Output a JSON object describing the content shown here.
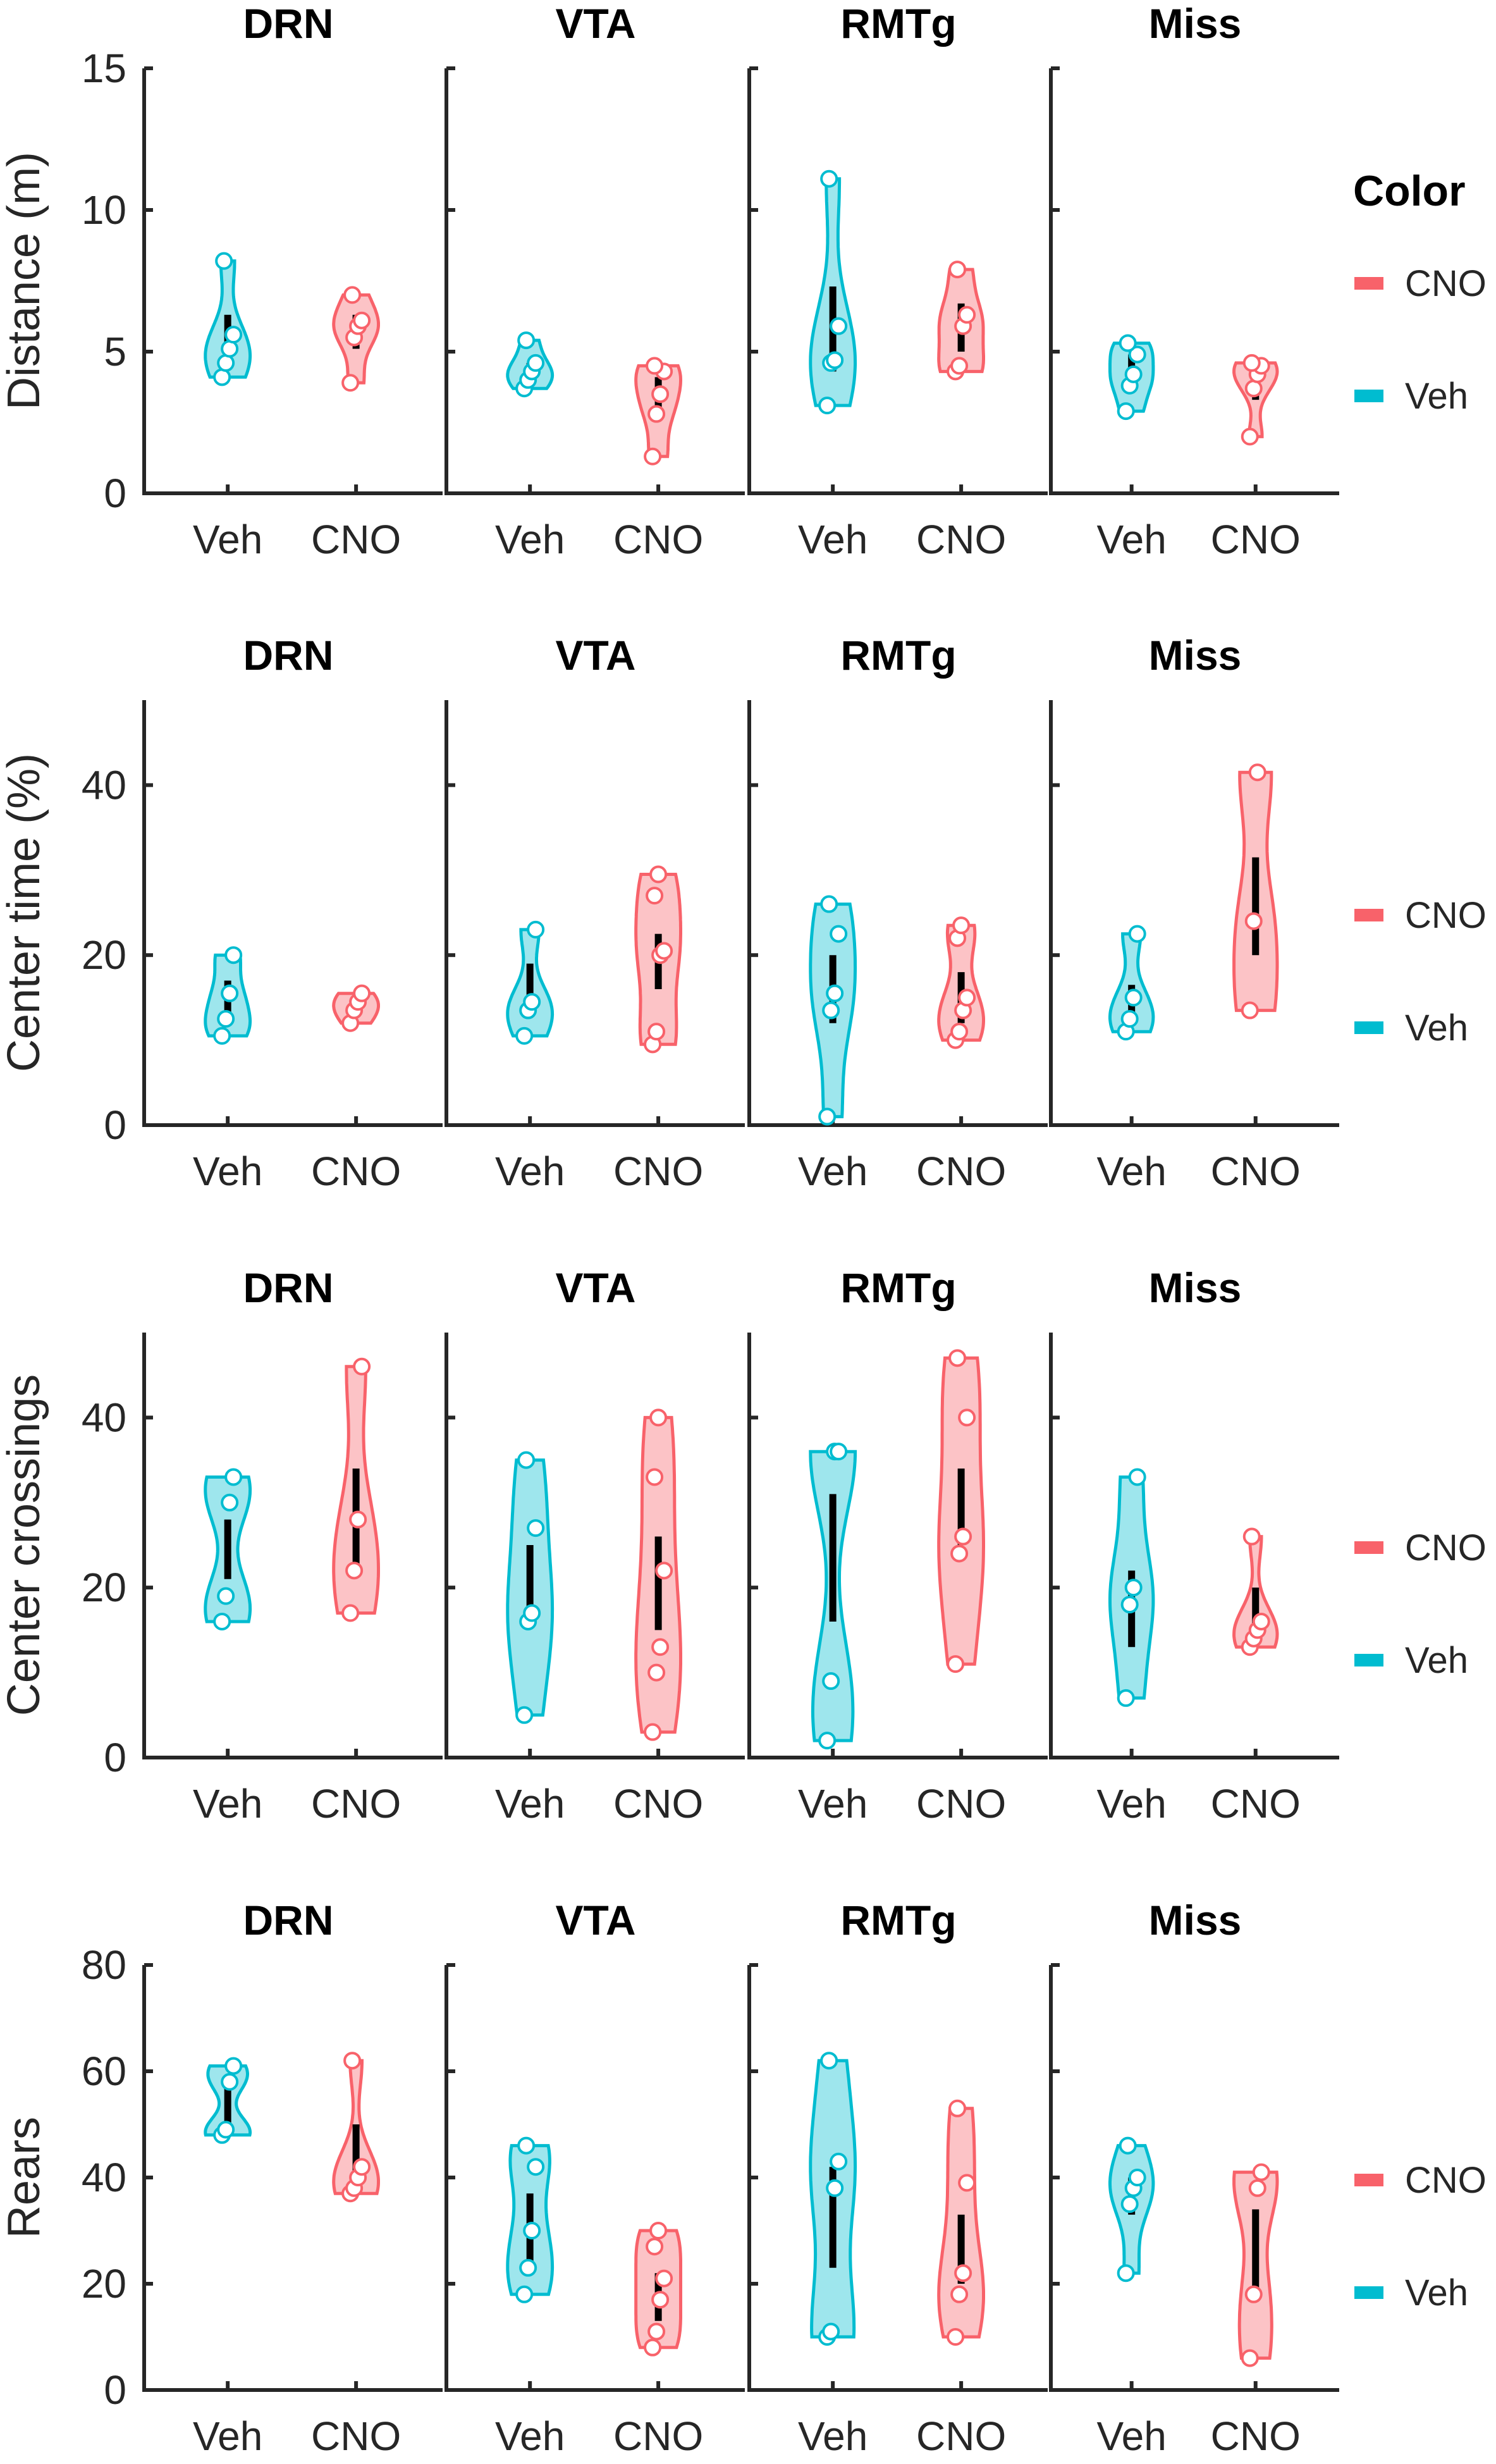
{
  "colors": {
    "Veh": "#00BCD0",
    "CNO": "#F8626A",
    "axis": "#262626"
  },
  "legend": {
    "title": "Color",
    "items": [
      "CNO",
      "Veh"
    ]
  },
  "chart_data": [
    {
      "type": "violin",
      "ylabel": "Distance (m)",
      "ylim": [
        0,
        15
      ],
      "yticks": [
        "0",
        "5",
        "10",
        "15"
      ],
      "categories": [
        "Veh",
        "CNO"
      ],
      "panels": [
        {
          "title": "DRN",
          "series": [
            {
              "name": "Veh",
              "points": [
                4.1,
                4.6,
                5.1,
                5.6,
                8.2
              ],
              "iqr": [
                4.5,
                6.3
              ]
            },
            {
              "name": "CNO",
              "points": [
                3.9,
                5.5,
                5.9,
                6.1,
                7.0
              ],
              "iqr": [
                5.1,
                6.3
              ]
            }
          ]
        },
        {
          "title": "VTA",
          "series": [
            {
              "name": "Veh",
              "points": [
                3.7,
                4.0,
                4.3,
                4.6,
                5.4
              ],
              "iqr": [
                4.0,
                4.6
              ]
            },
            {
              "name": "CNO",
              "points": [
                1.3,
                2.8,
                3.5,
                4.3,
                4.5
              ],
              "iqr": [
                3.0,
                4.1
              ]
            }
          ]
        },
        {
          "title": "RMTg",
          "series": [
            {
              "name": "Veh",
              "points": [
                3.1,
                4.6,
                4.7,
                5.9,
                11.1
              ],
              "iqr": [
                4.3,
                7.3
              ]
            },
            {
              "name": "CNO",
              "points": [
                4.3,
                4.5,
                5.9,
                6.3,
                7.9
              ],
              "iqr": [
                5.0,
                6.7
              ]
            }
          ]
        },
        {
          "title": "Miss",
          "series": [
            {
              "name": "Veh",
              "points": [
                2.9,
                3.8,
                4.2,
                4.9,
                5.3
              ],
              "iqr": [
                3.6,
                4.9
              ]
            },
            {
              "name": "CNO",
              "points": [
                2.0,
                3.7,
                4.2,
                4.5,
                4.6
              ],
              "iqr": [
                3.3,
                4.3
              ]
            }
          ]
        }
      ]
    },
    {
      "type": "violin",
      "ylabel": "Center time (%)",
      "ylim": [
        0,
        50
      ],
      "yticks": [
        "0",
        "20",
        "40"
      ],
      "categories": [
        "Veh",
        "CNO"
      ],
      "panels": [
        {
          "title": "DRN",
          "series": [
            {
              "name": "Veh",
              "points": [
                10.5,
                12.5,
                15.5,
                20.0
              ],
              "iqr": [
                12.0,
                17.0
              ]
            },
            {
              "name": "CNO",
              "points": [
                12.0,
                13.5,
                14.5,
                15.5
              ],
              "iqr": [
                13.0,
                15.0
              ]
            }
          ]
        },
        {
          "title": "VTA",
          "series": [
            {
              "name": "Veh",
              "points": [
                10.5,
                13.5,
                14.5,
                23.0
              ],
              "iqr": [
                13.0,
                19.0
              ]
            },
            {
              "name": "CNO",
              "points": [
                9.5,
                11.0,
                20.0,
                20.5,
                27.0,
                29.5
              ],
              "iqr": [
                16.0,
                22.5
              ]
            }
          ]
        },
        {
          "title": "RMTg",
          "series": [
            {
              "name": "Veh",
              "points": [
                1.0,
                13.5,
                15.5,
                22.5,
                26.0
              ],
              "iqr": [
                12.0,
                20.0
              ]
            },
            {
              "name": "CNO",
              "points": [
                10.0,
                11.0,
                13.5,
                15.0,
                22.0,
                23.5
              ],
              "iqr": [
                12.0,
                18.0
              ]
            }
          ]
        },
        {
          "title": "Miss",
          "series": [
            {
              "name": "Veh",
              "points": [
                11.0,
                12.5,
                15.0,
                22.5
              ],
              "iqr": [
                12.5,
                16.5
              ]
            },
            {
              "name": "CNO",
              "points": [
                13.5,
                24.0,
                41.5
              ],
              "iqr": [
                20.0,
                31.5
              ]
            }
          ]
        }
      ]
    },
    {
      "type": "violin",
      "ylabel": "Center crossings",
      "ylim": [
        0,
        50
      ],
      "yticks": [
        "0",
        "20",
        "40"
      ],
      "categories": [
        "Veh",
        "CNO"
      ],
      "panels": [
        {
          "title": "DRN",
          "series": [
            {
              "name": "Veh",
              "points": [
                16,
                19,
                30,
                33
              ],
              "iqr": [
                21,
                28
              ]
            },
            {
              "name": "CNO",
              "points": [
                17,
                22,
                28,
                46
              ],
              "iqr": [
                22,
                34
              ]
            }
          ]
        },
        {
          "title": "VTA",
          "series": [
            {
              "name": "Veh",
              "points": [
                5,
                16,
                17,
                27,
                35
              ],
              "iqr": [
                16,
                25
              ]
            },
            {
              "name": "CNO",
              "points": [
                3,
                10,
                13,
                22,
                33,
                40
              ],
              "iqr": [
                15,
                26
              ]
            }
          ]
        },
        {
          "title": "RMTg",
          "series": [
            {
              "name": "Veh",
              "points": [
                2,
                9,
                36,
                36
              ],
              "iqr": [
                16,
                31
              ]
            },
            {
              "name": "CNO",
              "points": [
                11,
                24,
                26,
                40,
                47
              ],
              "iqr": [
                25,
                34
              ]
            }
          ]
        },
        {
          "title": "Miss",
          "series": [
            {
              "name": "Veh",
              "points": [
                7,
                18,
                20,
                33
              ],
              "iqr": [
                13,
                22
              ]
            },
            {
              "name": "CNO",
              "points": [
                13,
                14,
                15,
                16,
                26
              ],
              "iqr": [
                14,
                20
              ]
            }
          ]
        }
      ]
    },
    {
      "type": "violin",
      "ylabel": "Rears",
      "ylim": [
        0,
        80
      ],
      "yticks": [
        "0",
        "20",
        "40",
        "60",
        "80"
      ],
      "categories": [
        "Veh",
        "CNO"
      ],
      "panels": [
        {
          "title": "DRN",
          "series": [
            {
              "name": "Veh",
              "points": [
                48,
                49,
                58,
                61
              ],
              "iqr": [
                50,
                57
              ]
            },
            {
              "name": "CNO",
              "points": [
                37,
                38,
                40,
                42,
                62
              ],
              "iqr": [
                38,
                50
              ]
            }
          ]
        },
        {
          "title": "VTA",
          "series": [
            {
              "name": "Veh",
              "points": [
                18,
                23,
                30,
                42,
                46
              ],
              "iqr": [
                24,
                37
              ]
            },
            {
              "name": "CNO",
              "points": [
                8,
                11,
                17,
                21,
                27,
                30
              ],
              "iqr": [
                13,
                22
              ]
            }
          ]
        },
        {
          "title": "RMTg",
          "series": [
            {
              "name": "Veh",
              "points": [
                10,
                11,
                38,
                43,
                62
              ],
              "iqr": [
                23,
                42
              ]
            },
            {
              "name": "CNO",
              "points": [
                10,
                18,
                22,
                39,
                53
              ],
              "iqr": [
                20,
                33
              ]
            }
          ]
        },
        {
          "title": "Miss",
          "series": [
            {
              "name": "Veh",
              "points": [
                22,
                35,
                38,
                40,
                46
              ],
              "iqr": [
                33,
                40
              ]
            },
            {
              "name": "CNO",
              "points": [
                6,
                18,
                38,
                41
              ],
              "iqr": [
                18,
                34
              ]
            }
          ]
        }
      ]
    }
  ]
}
